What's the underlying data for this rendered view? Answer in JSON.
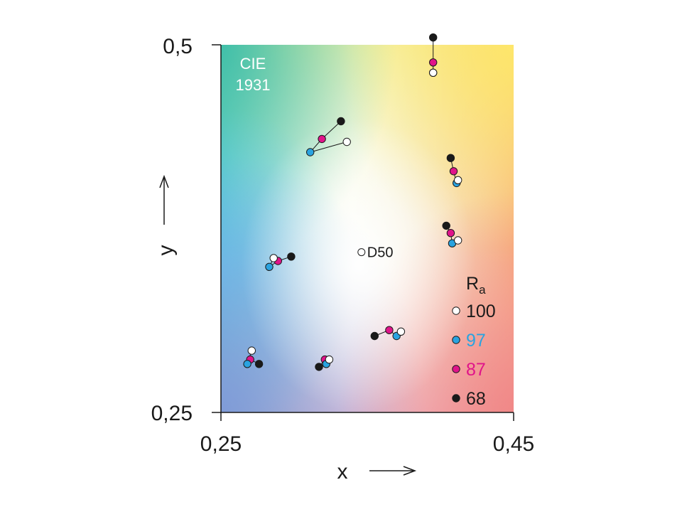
{
  "chart_data": {
    "type": "scatter",
    "xlabel": "x",
    "ylabel": "y",
    "xlim": [
      0.25,
      0.45
    ],
    "ylim": [
      0.25,
      0.5
    ],
    "xticks": [
      "0,25",
      "0,45"
    ],
    "yticks": [
      "0,5",
      "0,25"
    ],
    "plot_label": [
      "CIE",
      "1931"
    ],
    "legend_title": "R",
    "legend_title_sub": "a",
    "legend_placement": "bottom-right",
    "colors": {
      "100": "#ffffff",
      "97": "#2aa3e0",
      "87": "#e0148a",
      "68": "#1a1a1a"
    },
    "series": [
      {
        "name": "100",
        "color": "#ffffff",
        "text_color": "#1a1a1a",
        "x": [
          0.395,
          0.412,
          0.336,
          0.412,
          0.286,
          0.271,
          0.324,
          0.373
        ],
        "y": [
          0.481,
          0.408,
          0.434,
          0.367,
          0.355,
          0.292,
          0.286,
          0.305
        ]
      },
      {
        "name": "97",
        "color": "#2aa3e0",
        "text_color": "#2aa3e0",
        "x": [
          0.395,
          0.411,
          0.311,
          0.408,
          0.283,
          0.268,
          0.322,
          0.37
        ],
        "y": [
          0.481,
          0.406,
          0.427,
          0.365,
          0.349,
          0.283,
          0.283,
          0.302
        ]
      },
      {
        "name": "87",
        "color": "#e0148a",
        "text_color": "#e0148a",
        "x": [
          0.395,
          0.409,
          0.319,
          0.407,
          0.289,
          0.27,
          0.321,
          0.365
        ],
        "y": [
          0.488,
          0.414,
          0.436,
          0.372,
          0.353,
          0.286,
          0.286,
          0.306
        ]
      },
      {
        "name": "68",
        "color": "#1a1a1a",
        "text_color": "#1a1a1a",
        "x": [
          0.395,
          0.407,
          0.332,
          0.404,
          0.298,
          0.276,
          0.317,
          0.355
        ],
        "y": [
          0.505,
          0.423,
          0.448,
          0.377,
          0.356,
          0.283,
          0.281,
          0.302
        ]
      }
    ],
    "annotations": [
      {
        "text": "D50",
        "x": 0.346,
        "y": 0.359
      }
    ]
  }
}
